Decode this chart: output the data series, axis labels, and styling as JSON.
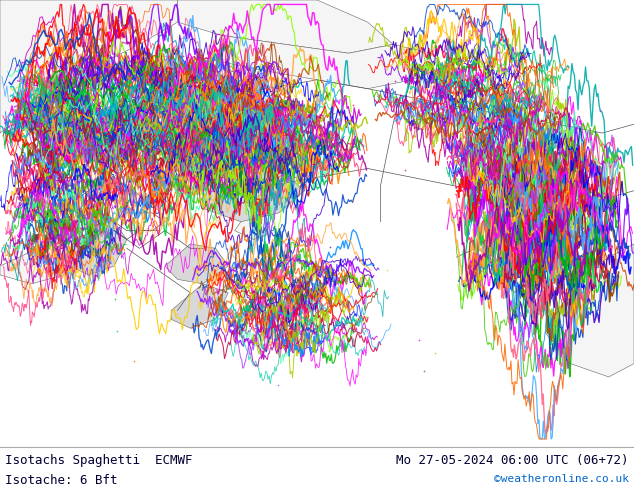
{
  "title_left_line1": "Isotachs Spaghetti  ECMWF",
  "title_left_line2": "Isotache: 6 Bft",
  "title_right_line1": "Mo 27-05-2024 06:00 UTC (06+72)",
  "title_right_line2": "©weatheronline.co.uk",
  "title_right_line2_color": "#0066cc",
  "text_color": "#000033",
  "land_color": "#cceecc",
  "ocean_color": "#f0f8f0",
  "border_color": "#666666",
  "fig_width": 6.34,
  "fig_height": 4.9,
  "dpi": 100,
  "font_size_main": 9,
  "font_size_credit": 8,
  "spaghetti_colors": [
    "#ff0000",
    "#00bb00",
    "#0000ff",
    "#ff6600",
    "#aa00aa",
    "#00aaaa",
    "#ffcc00",
    "#ff00ff",
    "#8800ff",
    "#ff4488",
    "#ff8800",
    "#00ccaa",
    "#88ff00",
    "#cc00cc",
    "#0088ff",
    "#ff0044",
    "#aacc00",
    "#0044cc",
    "#cc4400",
    "#4400cc",
    "#00cc44",
    "#cc0044",
    "#44cc00",
    "#0044cc",
    "#884400",
    "#ff6688",
    "#44ffaa",
    "#aa44ff",
    "#ffaa44",
    "#44aaff"
  ]
}
